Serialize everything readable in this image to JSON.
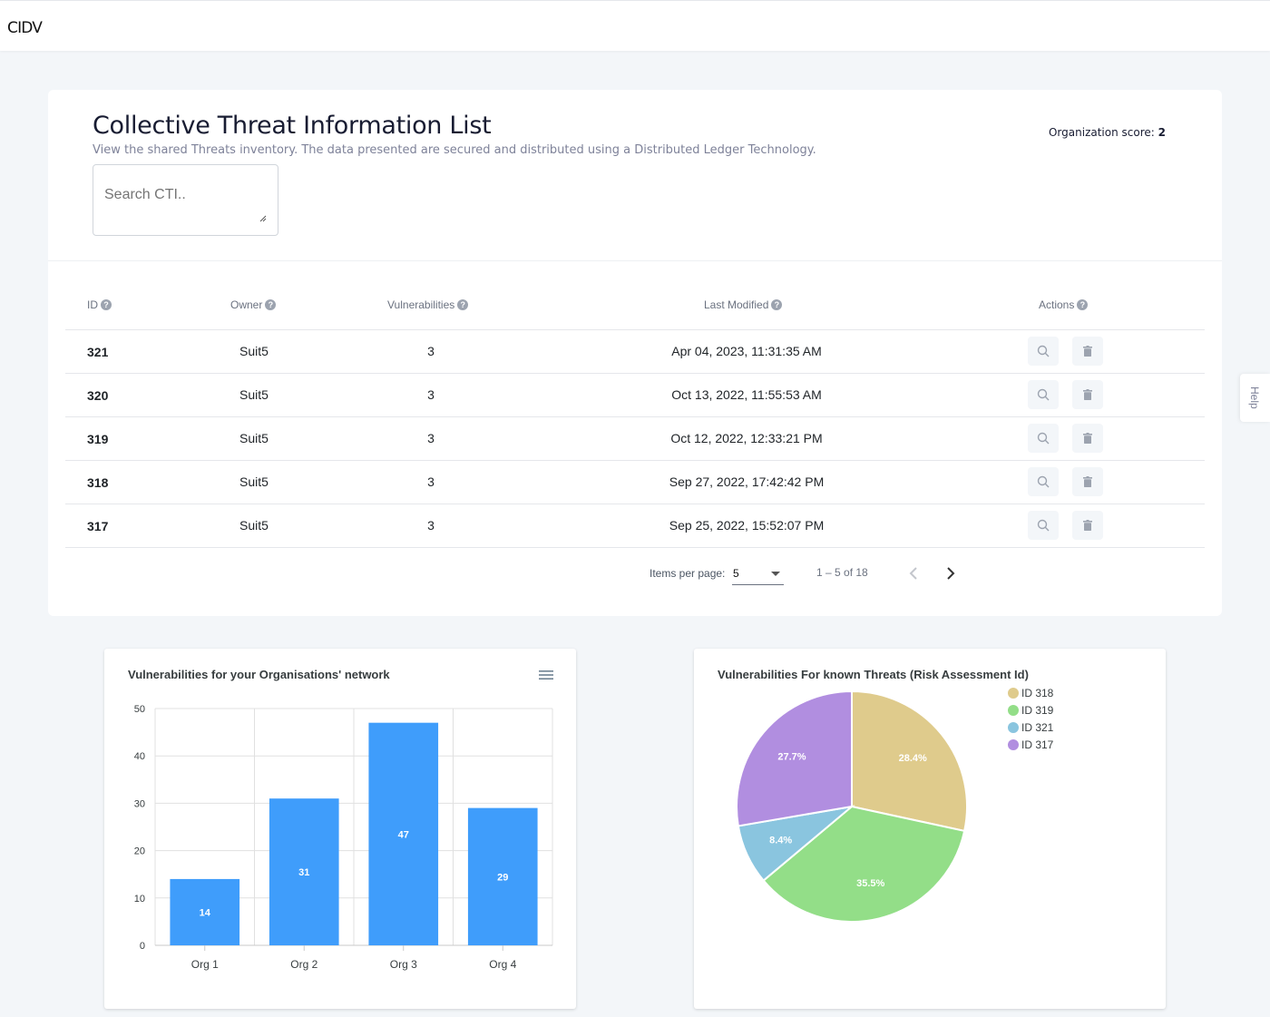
{
  "app": {
    "brand": "CIDV"
  },
  "header": {
    "title": "Collective Threat Information List",
    "subtitle": "View the shared Threats inventory. The data presented are secured and distributed using a Distributed Ledger Technology.",
    "org_score_label": "Organization score:",
    "org_score_value": "2"
  },
  "search": {
    "placeholder": "Search CTI.."
  },
  "table": {
    "columns": [
      {
        "label": "ID"
      },
      {
        "label": "Owner"
      },
      {
        "label": "Vulnerabilities"
      },
      {
        "label": "Last Modified"
      },
      {
        "label": "Actions"
      }
    ],
    "rows": [
      {
        "id": "321",
        "owner": "Suit5",
        "vulnerabilities": "3",
        "last_modified": "Apr 04, 2023, 11:31:35 AM"
      },
      {
        "id": "320",
        "owner": "Suit5",
        "vulnerabilities": "3",
        "last_modified": "Oct 13, 2022, 11:55:53 AM"
      },
      {
        "id": "319",
        "owner": "Suit5",
        "vulnerabilities": "3",
        "last_modified": "Oct 12, 2022, 12:33:21 PM"
      },
      {
        "id": "318",
        "owner": "Suit5",
        "vulnerabilities": "3",
        "last_modified": "Sep 27, 2022, 17:42:42 PM"
      },
      {
        "id": "317",
        "owner": "Suit5",
        "vulnerabilities": "3",
        "last_modified": "Sep 25, 2022, 15:52:07 PM"
      }
    ],
    "action_icons": [
      "search-icon",
      "trash-icon"
    ]
  },
  "pagination": {
    "items_per_page_label": "Items per page:",
    "items_per_page_value": "5",
    "range_label": "1 – 5 of 18"
  },
  "help_tab": {
    "label": "Help"
  },
  "colors": {
    "bar": "#3f9dfb",
    "pie_318": "#dfcb8c",
    "pie_319": "#93de88",
    "pie_321": "#8ac5df",
    "pie_317": "#b18ee0"
  },
  "chart_data": [
    {
      "type": "bar",
      "title": "Vulnerabilities for your Organisations' network",
      "categories": [
        "Org 1",
        "Org 2",
        "Org 3",
        "Org 4"
      ],
      "values": [
        14,
        31,
        47,
        29
      ],
      "ylim": [
        0,
        50
      ],
      "yticks": [
        0,
        10,
        20,
        30,
        40,
        50
      ],
      "grid": true,
      "data_labels": true
    },
    {
      "type": "pie",
      "title": "Vulnerabilities For known Threats (Risk Assessment Id)",
      "labels": [
        "ID 318",
        "ID 319",
        "ID 321",
        "ID 317"
      ],
      "values": [
        28.4,
        35.5,
        8.4,
        27.7
      ],
      "value_labels": [
        "28.4%",
        "35.5%",
        "8.4%",
        "27.7%"
      ],
      "legend": "top-right"
    }
  ]
}
